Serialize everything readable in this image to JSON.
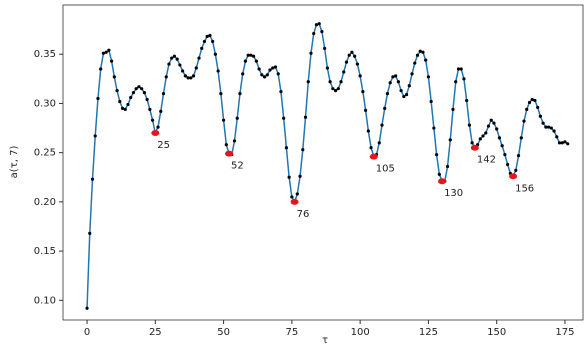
{
  "chart_data": {
    "type": "line",
    "xlabel": "τ",
    "ylabel": "a(τ, 7)",
    "line_color": "#1f77b4",
    "marker_color": "#000000",
    "annotation_color": "#e8141c",
    "xlim": [
      -8.8,
      181.6
    ],
    "ylim": [
      0.08,
      0.4
    ],
    "xticks": [
      0,
      25,
      50,
      75,
      100,
      125,
      150,
      175
    ],
    "yticks": [
      {
        "value": 0.1,
        "label": "0.10"
      },
      {
        "value": 0.15,
        "label": "0.15"
      },
      {
        "value": 0.2,
        "label": "0.20"
      },
      {
        "value": 0.25,
        "label": "0.25"
      },
      {
        "value": 0.3,
        "label": "0.30"
      },
      {
        "value": 0.35,
        "label": "0.35"
      }
    ],
    "x": [
      0,
      1,
      2,
      3,
      4,
      5,
      6,
      7,
      8,
      9,
      10,
      11,
      12,
      13,
      14,
      15,
      16,
      17,
      18,
      19,
      20,
      21,
      22,
      23,
      24,
      25,
      26,
      27,
      28,
      29,
      30,
      31,
      32,
      33,
      34,
      35,
      36,
      37,
      38,
      39,
      40,
      41,
      42,
      43,
      44,
      45,
      46,
      47,
      48,
      49,
      50,
      51,
      52,
      53,
      54,
      55,
      56,
      57,
      58,
      59,
      60,
      61,
      62,
      63,
      64,
      65,
      66,
      67,
      68,
      69,
      70,
      71,
      72,
      73,
      74,
      75,
      76,
      77,
      78,
      79,
      80,
      81,
      82,
      83,
      84,
      85,
      86,
      87,
      88,
      89,
      90,
      91,
      92,
      93,
      94,
      95,
      96,
      97,
      98,
      99,
      100,
      101,
      102,
      103,
      104,
      105,
      106,
      107,
      108,
      109,
      110,
      111,
      112,
      113,
      114,
      115,
      116,
      117,
      118,
      119,
      120,
      121,
      122,
      123,
      124,
      125,
      126,
      127,
      128,
      129,
      130,
      131,
      132,
      133,
      134,
      135,
      136,
      137,
      138,
      139,
      140,
      141,
      142,
      143,
      144,
      145,
      146,
      147,
      148,
      149,
      150,
      151,
      152,
      153,
      154,
      155,
      156,
      157,
      158,
      159,
      160,
      161,
      162,
      163,
      164,
      165,
      166,
      167,
      168,
      169,
      170,
      171,
      172,
      173,
      174,
      175,
      176
    ],
    "values": [
      0.092,
      0.168,
      0.223,
      0.267,
      0.305,
      0.335,
      0.351,
      0.352,
      0.354,
      0.343,
      0.327,
      0.313,
      0.302,
      0.295,
      0.294,
      0.299,
      0.306,
      0.311,
      0.315,
      0.317,
      0.315,
      0.311,
      0.304,
      0.294,
      0.283,
      0.27,
      0.276,
      0.292,
      0.31,
      0.327,
      0.34,
      0.346,
      0.348,
      0.345,
      0.339,
      0.333,
      0.328,
      0.326,
      0.326,
      0.328,
      0.336,
      0.346,
      0.356,
      0.363,
      0.368,
      0.369,
      0.363,
      0.35,
      0.333,
      0.31,
      0.283,
      0.258,
      0.249,
      0.248,
      0.262,
      0.285,
      0.31,
      0.33,
      0.343,
      0.349,
      0.349,
      0.348,
      0.343,
      0.335,
      0.329,
      0.327,
      0.329,
      0.334,
      0.336,
      0.337,
      0.33,
      0.312,
      0.285,
      0.255,
      0.225,
      0.205,
      0.2,
      0.208,
      0.226,
      0.253,
      0.286,
      0.322,
      0.351,
      0.371,
      0.38,
      0.381,
      0.373,
      0.356,
      0.336,
      0.322,
      0.315,
      0.313,
      0.315,
      0.322,
      0.332,
      0.342,
      0.349,
      0.352,
      0.348,
      0.34,
      0.328,
      0.312,
      0.293,
      0.272,
      0.255,
      0.246,
      0.248,
      0.26,
      0.278,
      0.295,
      0.31,
      0.321,
      0.327,
      0.328,
      0.322,
      0.313,
      0.307,
      0.309,
      0.318,
      0.33,
      0.341,
      0.349,
      0.353,
      0.352,
      0.344,
      0.327,
      0.302,
      0.275,
      0.248,
      0.228,
      0.221,
      0.221,
      0.236,
      0.263,
      0.294,
      0.322,
      0.335,
      0.335,
      0.325,
      0.303,
      0.278,
      0.26,
      0.255,
      0.258,
      0.264,
      0.267,
      0.27,
      0.277,
      0.283,
      0.28,
      0.274,
      0.265,
      0.257,
      0.248,
      0.238,
      0.229,
      0.226,
      0.232,
      0.247,
      0.265,
      0.282,
      0.294,
      0.301,
      0.304,
      0.303,
      0.296,
      0.287,
      0.28,
      0.276,
      0.276,
      0.275,
      0.272,
      0.266,
      0.26,
      0.26,
      0.261,
      0.259
    ],
    "annotations": [
      {
        "text": "25",
        "x": 25,
        "y": 0.27
      },
      {
        "text": "52",
        "x": 52,
        "y": 0.249
      },
      {
        "text": "76",
        "x": 76,
        "y": 0.2
      },
      {
        "text": "105",
        "x": 105,
        "y": 0.246
      },
      {
        "text": "130",
        "x": 130,
        "y": 0.221
      },
      {
        "text": "142",
        "x": 142,
        "y": 0.255
      },
      {
        "text": "156",
        "x": 156,
        "y": 0.226
      }
    ]
  }
}
